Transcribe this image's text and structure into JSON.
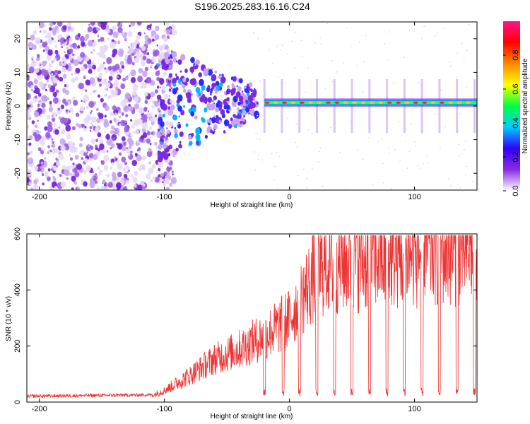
{
  "title": "S196.2025.283.16.16.C24",
  "chart_data": [
    {
      "type": "heatmap",
      "title": "S196.2025.283.16.16.C24",
      "xlabel": "Height of straight line (km)",
      "ylabel": "Frequency (Hz)",
      "xlim": [
        -210,
        150
      ],
      "ylim": [
        -25,
        25
      ],
      "xticks": [
        -200,
        -100,
        0,
        100
      ],
      "yticks": [
        -20,
        -10,
        0,
        10,
        20
      ],
      "xtick_labels": [
        "-200",
        "-100",
        "0",
        "100"
      ],
      "ytick_labels": [
        "-20",
        "-10",
        "0",
        "10",
        "20"
      ],
      "ridge": {
        "x_start": -20,
        "x_end": 150,
        "frequency": 1
      },
      "colorbar": {
        "label": "Normalized spectral amplitude",
        "range": [
          0,
          1
        ],
        "ticks": [
          0.0,
          0.2,
          0.4,
          0.6,
          0.8
        ],
        "tick_labels": [
          "0.0",
          "0.2",
          "0.4",
          "0.6",
          "0.8"
        ],
        "colors": [
          "#ffffff",
          "#8a2be2",
          "#3300ff",
          "#00ccff",
          "#00ff44",
          "#ffff00",
          "#ff8800",
          "#ff0000",
          "#ff1493"
        ]
      }
    },
    {
      "type": "line",
      "xlabel": "Height of straight line (km)",
      "ylabel": "SNR (10 * v/v)",
      "xlim": [
        -210,
        150
      ],
      "ylim": [
        0,
        600
      ],
      "xticks": [
        -200,
        -100,
        0,
        100
      ],
      "yticks": [
        0,
        200,
        400,
        600
      ],
      "xtick_labels": [
        "-200",
        "-100",
        "0",
        "100"
      ],
      "ytick_labels": [
        "0",
        "200",
        "400",
        "600"
      ],
      "color": "#ee3333",
      "envelope": {
        "x": [
          -210,
          -110,
          -100,
          -80,
          -60,
          -40,
          -20,
          0,
          10,
          20,
          30,
          50,
          80,
          100,
          120,
          150
        ],
        "y": [
          15,
          20,
          35,
          80,
          130,
          160,
          200,
          250,
          320,
          380,
          420,
          430,
          440,
          450,
          460,
          470
        ]
      },
      "dropouts": [
        -20,
        -5,
        8,
        22,
        36,
        50,
        64,
        78,
        92,
        106,
        120,
        134,
        148
      ]
    }
  ]
}
